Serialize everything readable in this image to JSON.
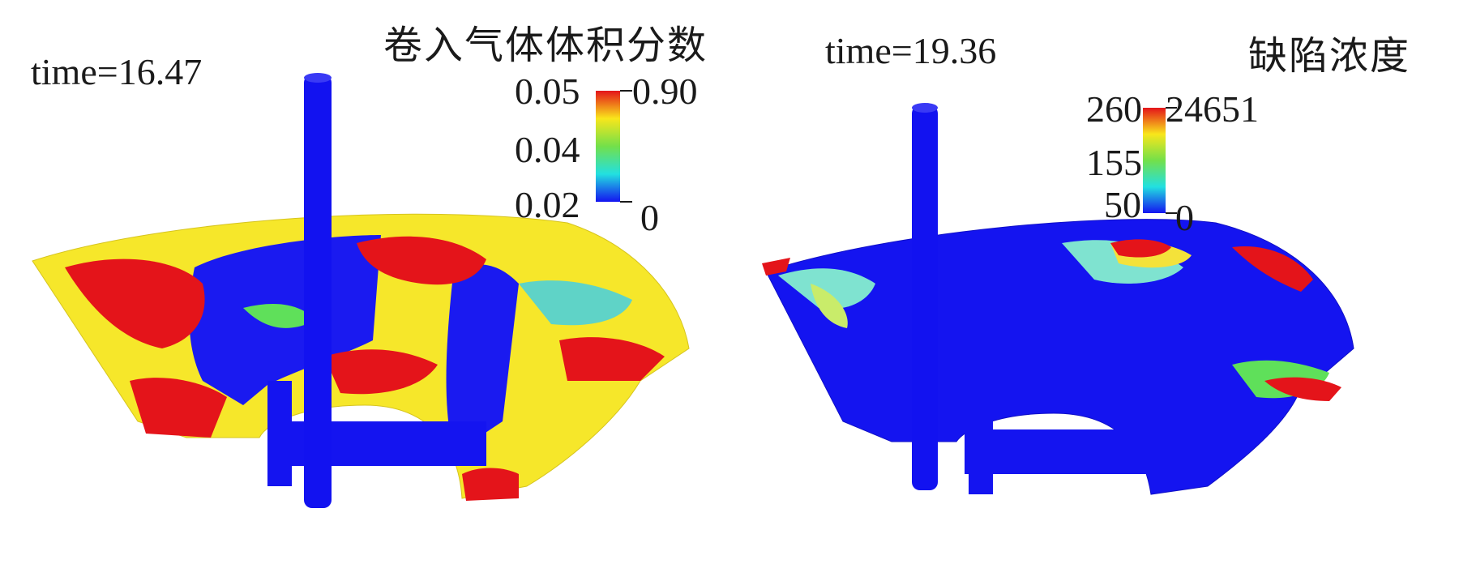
{
  "panels": [
    {
      "time_label": "time=16.47",
      "colorbar": {
        "title": "卷入气体体积分数",
        "left_ticks": [
          "0.05",
          "0.04",
          "0.02"
        ],
        "right_ticks": [
          "0.90",
          "0"
        ],
        "colors": [
          "#e4141a",
          "#f9e61b",
          "#73e04a",
          "#22e0e0",
          "#1414f0"
        ]
      }
    },
    {
      "time_label": "time=19.36",
      "colorbar": {
        "title": "缺陷浓度",
        "left_ticks": [
          "260",
          "155",
          "50"
        ],
        "right_ticks": [
          "24651",
          "0"
        ],
        "colors": [
          "#e4141a",
          "#f9e61b",
          "#73e04a",
          "#22e0e0",
          "#1414f0"
        ]
      }
    }
  ]
}
